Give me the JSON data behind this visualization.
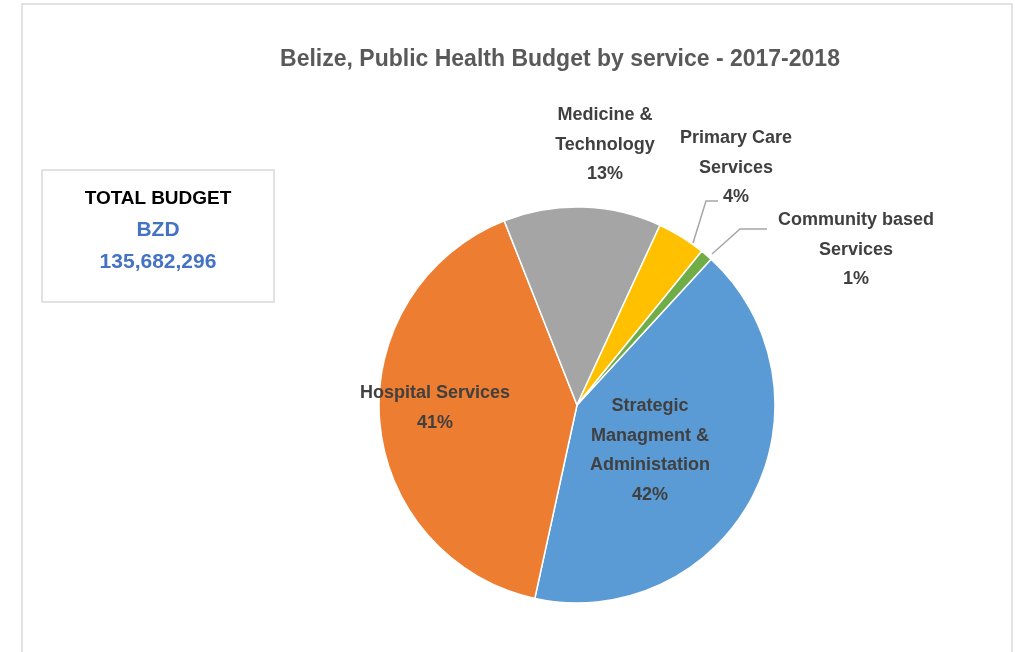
{
  "chart_data": {
    "type": "pie",
    "title": "Belize, Public Health Budget by service - 2017-2018",
    "categories": [
      "Strategic Managment & Administation",
      "Hospital Services",
      "Medicine & Technology",
      "Primary Care Services",
      "Community based Services"
    ],
    "values": [
      42,
      41,
      13,
      4,
      1
    ],
    "colors": [
      "#5b9bd5",
      "#ed7d31",
      "#a5a5a5",
      "#ffc000",
      "#70ad47"
    ],
    "value_labels": [
      "42%",
      "41%",
      "13%",
      "4%",
      "1%"
    ],
    "annotations": [
      "TOTAL BUDGET",
      "BZD",
      "135,682,296"
    ]
  }
}
